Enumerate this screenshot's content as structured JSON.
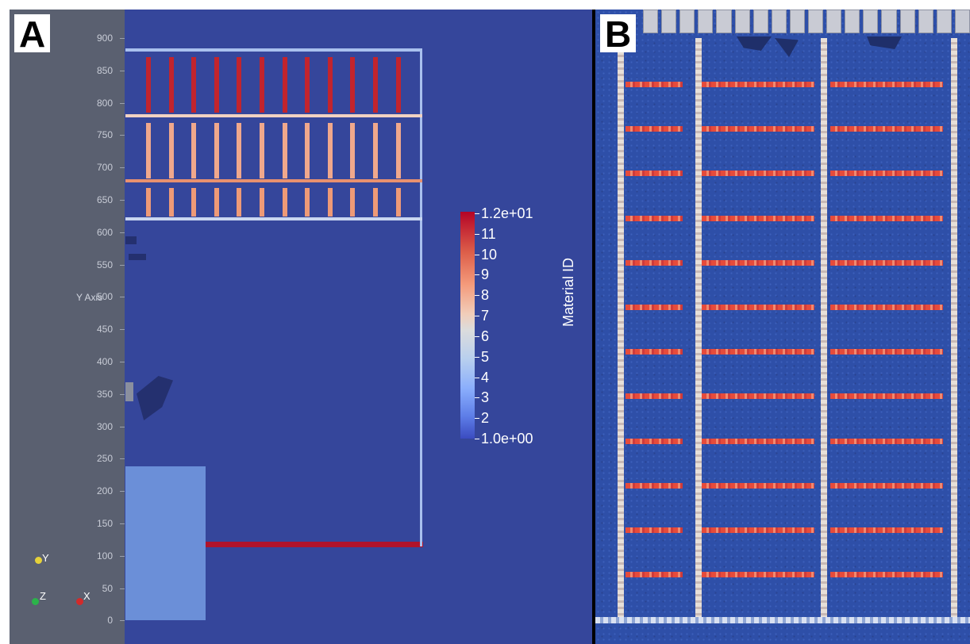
{
  "panel_a": {
    "letter": "A",
    "y_axis": {
      "title": "Y Axis",
      "ticks": [
        "900",
        "850",
        "800",
        "750",
        "700",
        "650",
        "600",
        "550",
        "500",
        "450",
        "400",
        "350",
        "300",
        "250",
        "200",
        "150",
        "100",
        "50",
        "0"
      ]
    },
    "colorbar": {
      "title": "Material ID",
      "labels": [
        "1.2e+01",
        "11",
        "10",
        "9",
        "8",
        "7",
        "6",
        "5",
        "4",
        "3",
        "2",
        "1.0e+00"
      ],
      "colors": {
        "high": "#b40426",
        "mid": "#dcdcdc",
        "low": "#3b4cc0"
      }
    },
    "orientation": {
      "y": "Y",
      "z": "Z",
      "x": "X"
    },
    "colors": {
      "background": "#35469b",
      "rods": "#b0132b",
      "beam_light": "#a9c0ee",
      "beam_orange": "#e8916f"
    }
  },
  "panel_b": {
    "letter": "B"
  }
}
